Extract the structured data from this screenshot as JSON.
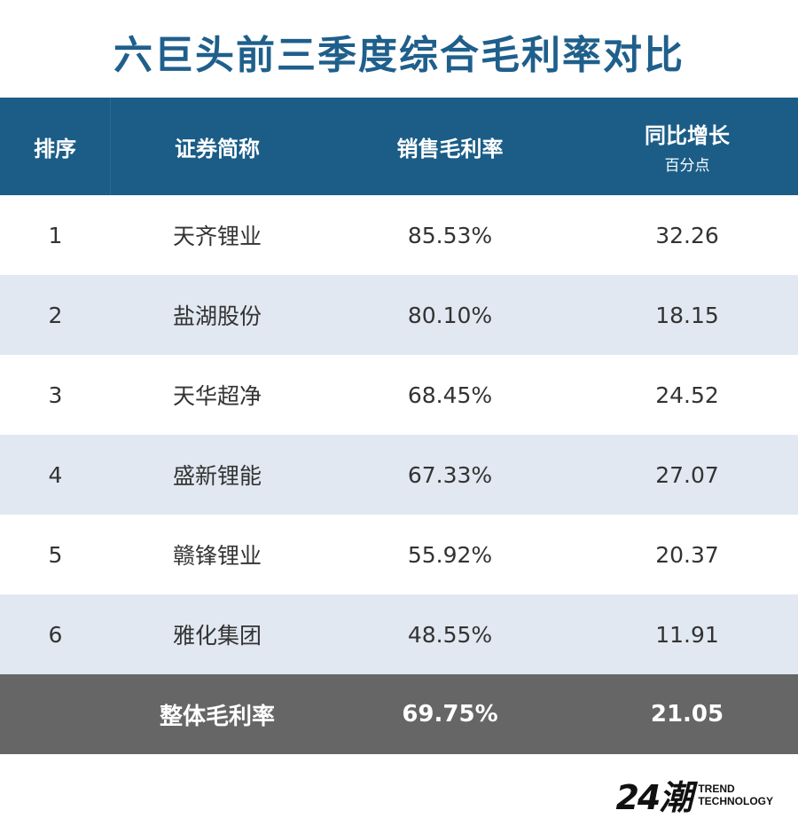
{
  "title": "六巨头前三季度综合毛利率对比",
  "chart_data": {
    "type": "table",
    "title": "六巨头前三季度综合毛利率对比",
    "columns": [
      "排序",
      "证券简称",
      "销售毛利率",
      "同比增长"
    ],
    "column_subtitles": {
      "同比增长": "百分点"
    },
    "rows": [
      {
        "rank": "1",
        "name": "天齐锂业",
        "margin": "85.53%",
        "growth": "32.26"
      },
      {
        "rank": "2",
        "name": "盐湖股份",
        "margin": "80.10%",
        "growth": "18.15"
      },
      {
        "rank": "3",
        "name": "天华超净",
        "margin": "68.45%",
        "growth": "24.52"
      },
      {
        "rank": "4",
        "name": "盛新锂能",
        "margin": "67.33%",
        "growth": "27.07"
      },
      {
        "rank": "5",
        "name": "赣锋锂业",
        "margin": "55.92%",
        "growth": "20.37"
      },
      {
        "rank": "6",
        "name": "雅化集团",
        "margin": "48.55%",
        "growth": "11.91"
      }
    ],
    "total": {
      "label": "整体毛利率",
      "margin": "69.75%",
      "growth": "21.05"
    }
  },
  "logo": {
    "mark": "24潮",
    "line1": "TREND",
    "line2": "TECHNOLOGY"
  },
  "colors": {
    "title": "#1f5f8b",
    "header": "#1b5d87",
    "alt_row": "#e1e8f1",
    "total_row": "#666666"
  }
}
